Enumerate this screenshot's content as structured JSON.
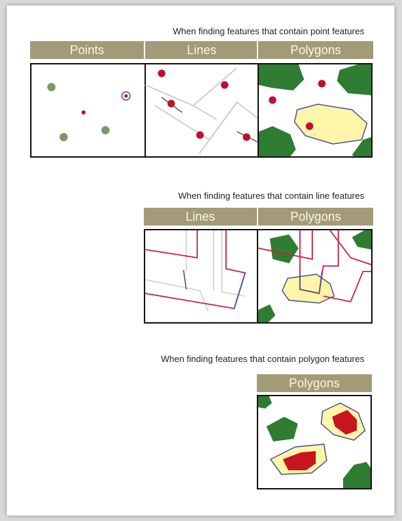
{
  "sections": [
    {
      "caption": "When finding features that contain point features",
      "headers": [
        "Points",
        "Lines",
        "Polygons"
      ]
    },
    {
      "caption": "When finding features that contain line features",
      "headers": [
        "Lines",
        "Polygons"
      ]
    },
    {
      "caption": "When finding features that contain polygon features",
      "headers": [
        "Polygons"
      ]
    }
  ],
  "colors": {
    "header": "#a39a77",
    "header_text": "#fbf7e6",
    "polygon_green": "#2e7d32",
    "point_green": "#7a9a6a",
    "point_red": "#c0102a",
    "line_red": "#c8244a",
    "highlight_yellow": "#fdf5a8",
    "outline_blue": "#4a4f9a",
    "faded_gray": "#cccccc"
  }
}
